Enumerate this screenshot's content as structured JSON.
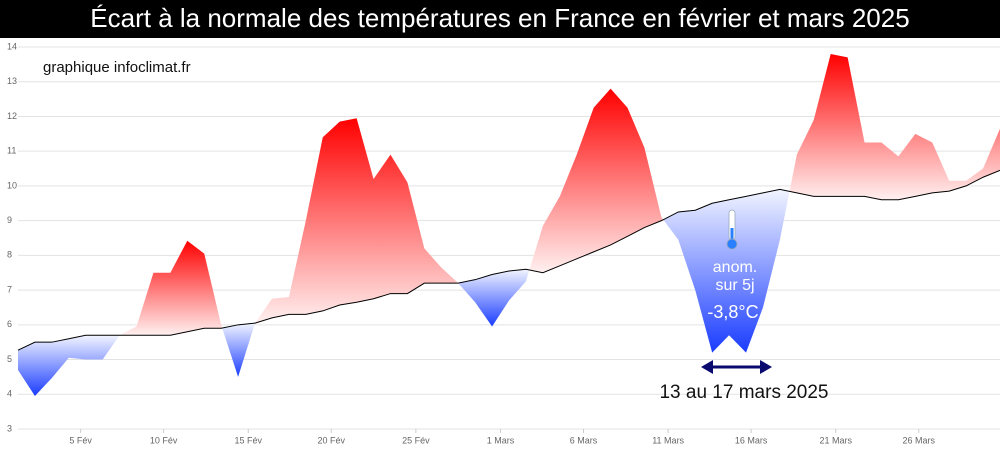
{
  "chart_data": {
    "type": "area",
    "title": "Écart à la normale des températures en France en février et mars 2025",
    "source": "graphique infoclimat.fr",
    "annotations": {
      "anomaly": [
        "anom.",
        "sur 5j",
        "-3,8°C"
      ],
      "period": "13 au 17 mars 2025"
    },
    "x": [
      1,
      2,
      3,
      4,
      5,
      6,
      7,
      8,
      9,
      10,
      11,
      12,
      13,
      14,
      15,
      16,
      17,
      18,
      19,
      20,
      21,
      22,
      23,
      24,
      25,
      26,
      27,
      28,
      29,
      30,
      31,
      32,
      33,
      34,
      35,
      36,
      37,
      38,
      39,
      40,
      41,
      42,
      43,
      44,
      45,
      46,
      47,
      48,
      49,
      50,
      51,
      52,
      53,
      54,
      55,
      56,
      57,
      58,
      59
    ],
    "series": [
      {
        "color": "#ff0000",
        "negative_color": "#1a3cff",
        "values": [
          4.7,
          3.95,
          4.47,
          5.05,
          5.0,
          5.0,
          5.7,
          5.95,
          7.5,
          7.5,
          8.42,
          8.05,
          6.0,
          4.5,
          6.05,
          6.75,
          6.8,
          9.0,
          11.4,
          11.85,
          11.95,
          10.2,
          10.9,
          10.1,
          8.2,
          7.65,
          7.2,
          6.65,
          5.95,
          6.7,
          7.25,
          8.85,
          9.7,
          10.9,
          12.25,
          12.8,
          12.25,
          11.1,
          9.1,
          8.45,
          7.0,
          5.2,
          5.7,
          5.2,
          6.5,
          8.45,
          10.9,
          11.9,
          13.8,
          13.7,
          11.25,
          11.25,
          10.85,
          11.5,
          11.25,
          10.15,
          10.15,
          10.5,
          11.65
        ]
      },
      {
        "color": "#000000",
        "values": [
          5.27,
          5.5,
          5.5,
          5.6,
          5.7,
          5.7,
          5.7,
          5.7,
          5.7,
          5.7,
          5.8,
          5.9,
          5.9,
          6.0,
          6.05,
          6.2,
          6.3,
          6.3,
          6.4,
          6.57,
          6.65,
          6.75,
          6.9,
          6.9,
          7.2,
          7.2,
          7.2,
          7.3,
          7.45,
          7.55,
          7.6,
          7.5,
          7.7,
          7.9,
          8.1,
          8.3,
          8.55,
          8.8,
          9.0,
          9.25,
          9.3,
          9.5,
          9.6,
          9.7,
          9.8,
          9.9,
          9.8,
          9.7,
          9.7,
          9.7,
          9.7,
          9.6,
          9.6,
          9.7,
          9.8,
          9.85,
          10.0,
          10.25,
          10.45
        ]
      }
    ],
    "xlim": [
      1,
      59
    ],
    "xticks": [
      {
        "value": 4.7,
        "label": "5 Fév"
      },
      {
        "value": 9.6,
        "label": "10 Fév"
      },
      {
        "value": 14.6,
        "label": "15 Fév"
      },
      {
        "value": 19.5,
        "label": "20 Fév"
      },
      {
        "value": 24.5,
        "label": "25 Fév"
      },
      {
        "value": 29.5,
        "label": "1 Mars"
      },
      {
        "value": 34.4,
        "label": "6 Mars"
      },
      {
        "value": 39.4,
        "label": "11 Mars"
      },
      {
        "value": 44.3,
        "label": "16 Mars"
      },
      {
        "value": 49.3,
        "label": "21 Mars"
      },
      {
        "value": 54.2,
        "label": "26 Mars"
      }
    ],
    "ylim": [
      3,
      14
    ],
    "yticks": [
      3,
      4,
      5,
      6,
      7,
      8,
      9,
      10,
      11,
      12,
      13,
      14
    ],
    "grid": true
  }
}
